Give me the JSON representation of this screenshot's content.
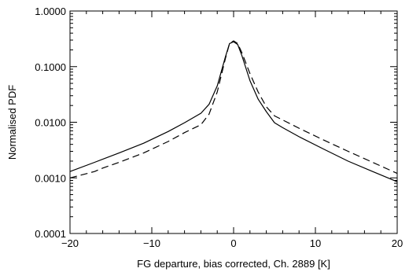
{
  "chart_data": {
    "type": "line",
    "title": "",
    "xlabel": "FG departure, bias corrected, Ch. 2889 [K]",
    "ylabel": "Normalised PDF",
    "xlim": [
      -20,
      20
    ],
    "ylim": [
      0.0001,
      1.0
    ],
    "yscale": "log",
    "grid": false,
    "x_ticks": [
      -20,
      -10,
      0,
      10,
      20
    ],
    "x_tick_labels": [
      "−20",
      "−10",
      "0",
      "10",
      "20"
    ],
    "y_ticks": [
      0.0001,
      0.001,
      0.01,
      0.1,
      1.0
    ],
    "y_tick_labels": [
      "0.0001",
      "0.0010",
      "0.0100",
      "0.1000",
      "1.0000"
    ],
    "series": [
      {
        "style": "solid",
        "x": [
          -20,
          -17,
          -14,
          -11,
          -8,
          -6,
          -4,
          -3,
          -2,
          -1,
          -0.5,
          0,
          0.5,
          1,
          2,
          3,
          4,
          5,
          6,
          8,
          11,
          14,
          17,
          20
        ],
        "y": [
          0.0013,
          0.0019,
          0.0028,
          0.0042,
          0.0068,
          0.0098,
          0.0145,
          0.021,
          0.045,
          0.15,
          0.26,
          0.28,
          0.25,
          0.16,
          0.056,
          0.026,
          0.0155,
          0.0098,
          0.008,
          0.0055,
          0.0033,
          0.002,
          0.0013,
          0.00085
        ]
      },
      {
        "style": "dashed",
        "x": [
          -20,
          -17,
          -16,
          -14,
          -11,
          -8,
          -6,
          -4,
          -3,
          -2,
          -1,
          -0.5,
          0,
          0.5,
          1,
          2,
          3,
          4,
          5,
          6,
          8,
          11,
          14,
          17,
          20
        ],
        "y": [
          0.001,
          0.0013,
          0.0015,
          0.0019,
          0.0028,
          0.0045,
          0.0065,
          0.009,
          0.014,
          0.035,
          0.14,
          0.26,
          0.29,
          0.26,
          0.18,
          0.075,
          0.035,
          0.019,
          0.013,
          0.011,
          0.0078,
          0.0048,
          0.003,
          0.0019,
          0.0012
        ]
      }
    ]
  }
}
